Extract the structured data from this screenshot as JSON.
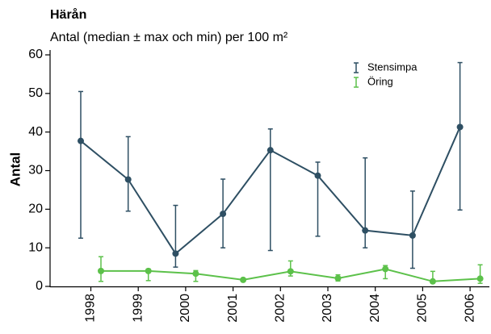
{
  "chart_data": {
    "type": "line",
    "title": "Härån",
    "subtitle": "Antal (median ± max och min) per 100 m²",
    "ylabel": "Antal",
    "categories": [
      "1998",
      "1999",
      "2000",
      "2001",
      "2002",
      "2003",
      "2004",
      "2005",
      "2006"
    ],
    "series": [
      {
        "name": "Stensimpa",
        "color": "#2e4f63",
        "values": [
          37.7,
          27.7,
          8.5,
          18.8,
          35.3,
          28.7,
          14.5,
          13.2,
          41.3
        ],
        "max": [
          50.5,
          38.8,
          21,
          27.8,
          40.8,
          32.2,
          33.3,
          24.7,
          58
        ],
        "min": [
          12.5,
          19.5,
          5,
          10,
          9.3,
          13,
          10,
          4.7,
          19.8
        ]
      },
      {
        "name": "Öring",
        "color": "#5cc14a",
        "values": [
          4,
          4,
          3.3,
          1.7,
          3.9,
          2.1,
          4.5,
          1.3,
          2
        ],
        "max": [
          7.7,
          4.5,
          4.1,
          1.9,
          6.6,
          3,
          5.4,
          3.9,
          5.6
        ],
        "min": [
          1.3,
          1.5,
          1.3,
          1.5,
          2.7,
          1.4,
          2,
          0.9,
          0.8
        ]
      }
    ],
    "ylim": [
      0,
      61
    ],
    "yticks": [
      0,
      10,
      20,
      30,
      40,
      50,
      60
    ],
    "legend": "upper right"
  }
}
